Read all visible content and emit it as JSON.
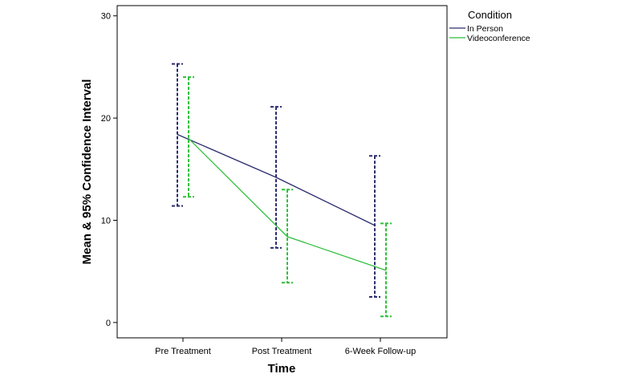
{
  "chart_data": {
    "type": "line",
    "xlabel": "Time",
    "ylabel": "Mean & 95% Confidence Interval",
    "categories": [
      "Pre Treatment",
      "Post Treatment",
      "6-Week Follow-up"
    ],
    "ylim": [
      -1.5,
      31
    ],
    "yticks": [
      0,
      10,
      20,
      30
    ],
    "legend": {
      "title": "Condition",
      "position": "top-right, outside plot"
    },
    "series": [
      {
        "name": "In Person",
        "color": "#2b2d6e",
        "means": [
          18.4,
          14.2,
          9.5
        ],
        "ci_lower": [
          11.4,
          7.3,
          2.5
        ],
        "ci_upper": [
          25.3,
          21.1,
          16.3
        ]
      },
      {
        "name": "Videoconference",
        "color": "#2fbf3a",
        "means": [
          18.0,
          8.4,
          5.1
        ],
        "ci_lower": [
          12.3,
          3.9,
          0.6
        ],
        "ci_upper": [
          24.0,
          13.0,
          9.7
        ]
      }
    ]
  }
}
